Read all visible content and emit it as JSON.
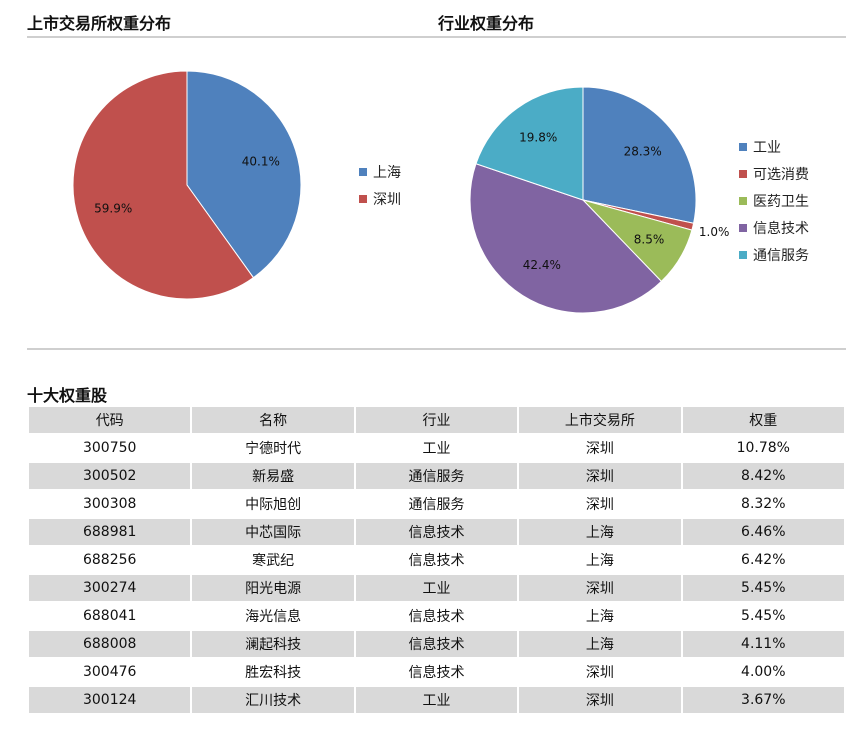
{
  "exchange_section": {
    "title": "上市交易所权重分布"
  },
  "industry_section": {
    "title": "行业权重分布"
  },
  "table_section": {
    "title": "十大权重股",
    "columns": [
      "代码",
      "名称",
      "行业",
      "上市交易所",
      "权重"
    ],
    "rows": [
      [
        "300750",
        "宁德时代",
        "工业",
        "深圳",
        "10.78%"
      ],
      [
        "300502",
        "新易盛",
        "通信服务",
        "深圳",
        "8.42%"
      ],
      [
        "300308",
        "中际旭创",
        "通信服务",
        "深圳",
        "8.32%"
      ],
      [
        "688981",
        "中芯国际",
        "信息技术",
        "上海",
        "6.46%"
      ],
      [
        "688256",
        "寒武纪",
        "信息技术",
        "上海",
        "6.42%"
      ],
      [
        "300274",
        "阳光电源",
        "工业",
        "深圳",
        "5.45%"
      ],
      [
        "688041",
        "海光信息",
        "信息技术",
        "上海",
        "5.45%"
      ],
      [
        "688008",
        "澜起科技",
        "信息技术",
        "上海",
        "4.11%"
      ],
      [
        "300476",
        "胜宏科技",
        "信息技术",
        "深圳",
        "4.00%"
      ],
      [
        "300124",
        "汇川技术",
        "工业",
        "深圳",
        "3.67%"
      ]
    ]
  },
  "chart_data": [
    {
      "type": "pie",
      "title": "上市交易所权重分布",
      "categories": [
        "上海",
        "深圳"
      ],
      "values": [
        40.1,
        59.9
      ],
      "labels": [
        "40.1%",
        "59.9%"
      ],
      "colors": [
        "#4f81bd",
        "#c0504d"
      ],
      "legend": "right"
    },
    {
      "type": "pie",
      "title": "行业权重分布",
      "categories": [
        "工业",
        "可选消费",
        "医药卫生",
        "信息技术",
        "通信服务"
      ],
      "values": [
        28.3,
        1.0,
        8.5,
        42.4,
        19.8
      ],
      "labels": [
        "28.3%",
        "1.0%",
        "8.5%",
        "42.4%",
        "19.8%"
      ],
      "colors": [
        "#4f81bd",
        "#c0504d",
        "#9bbb59",
        "#8064a2",
        "#4bacc6"
      ],
      "legend": "right"
    }
  ]
}
